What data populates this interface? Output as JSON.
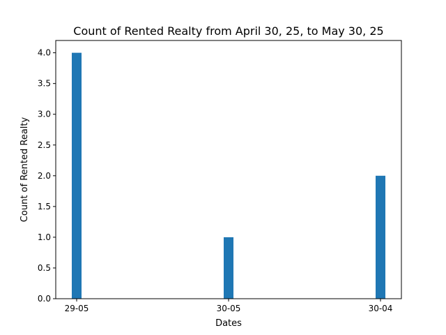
{
  "chart_data": {
    "type": "bar",
    "title": "Count of Rented Realty from April 30, 25, to May 30, 25",
    "xlabel": "Dates",
    "ylabel": "Count of Rented Realty",
    "categories": [
      "29-05",
      "30-05",
      "30-04"
    ],
    "values": [
      4,
      1,
      2
    ],
    "ylim": [
      0,
      4.2
    ],
    "yticks": [
      "0.0",
      "0.5",
      "1.0",
      "1.5",
      "2.0",
      "2.5",
      "3.0",
      "3.5",
      "4.0"
    ],
    "grid": false,
    "bar_color": "#1f77b4"
  }
}
